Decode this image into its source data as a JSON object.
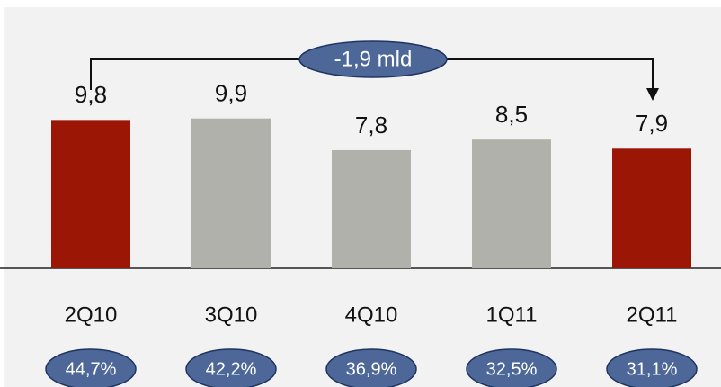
{
  "chart_data": {
    "type": "bar",
    "categories": [
      "2Q10",
      "3Q10",
      "4Q10",
      "1Q11",
      "2Q11"
    ],
    "values": [
      9.8,
      9.9,
      7.8,
      8.5,
      7.9
    ],
    "value_labels": [
      "9,8",
      "9,9",
      "7,8",
      "8,5",
      "7,9"
    ],
    "colors": [
      "#9c1606",
      "#b1b1ab",
      "#b1b1ab",
      "#b1b1ab",
      "#9c1606"
    ],
    "annotation": "-1,9 mld",
    "ratios": {
      "values": [
        44.7,
        42.2,
        36.9,
        32.5,
        31.1
      ],
      "value_labels": [
        "44,7%",
        "42,2%",
        "36,9%",
        "32,5%",
        "31,1%"
      ]
    }
  }
}
